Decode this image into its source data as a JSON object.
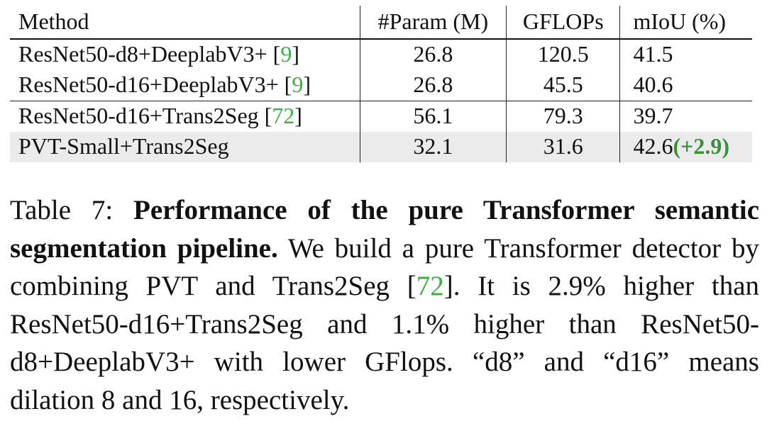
{
  "table": {
    "headers": {
      "method": "Method",
      "param": "#Param (M)",
      "gflops": "GFLOPs",
      "miou": "mIoU (%)"
    },
    "rows": [
      {
        "method": "ResNet50-d8+DeeplabV3+ ",
        "cite": "9",
        "param": "26.8",
        "gflops": "120.5",
        "miou": "41.5",
        "gain": ""
      },
      {
        "method": "ResNet50-d16+DeeplabV3+ ",
        "cite": "9",
        "param": "26.8",
        "gflops": "45.5",
        "miou": "40.6",
        "gain": ""
      },
      {
        "method": "ResNet50-d16+Trans2Seg ",
        "cite": "72",
        "param": "56.1",
        "gflops": "79.3",
        "miou": "39.7",
        "gain": ""
      },
      {
        "method": "PVT-Small+Trans2Seg",
        "cite": "",
        "param": "32.1",
        "gflops": "31.6",
        "miou": "42.6",
        "gain": "(+2.9)"
      }
    ]
  },
  "caption": {
    "label": "Table 7: ",
    "title": "Performance of the pure Transformer semantic segmentation pipeline.",
    "text_part1": " We build a pure Transformer detector by combining PVT and Trans2Seg [",
    "cite": "72",
    "text_part2": "]. It is 2.9% higher than ResNet50-d16+Trans2Seg and 1.1% higher than ResNet50-d8+DeeplabV3+ with lower GFlops. “d8” and “d16” means dilation 8 and 16, respectively."
  },
  "colors": {
    "citation": "#3cb043",
    "gain": "#3a8f3a",
    "highlight_row": "#ebebeb"
  }
}
